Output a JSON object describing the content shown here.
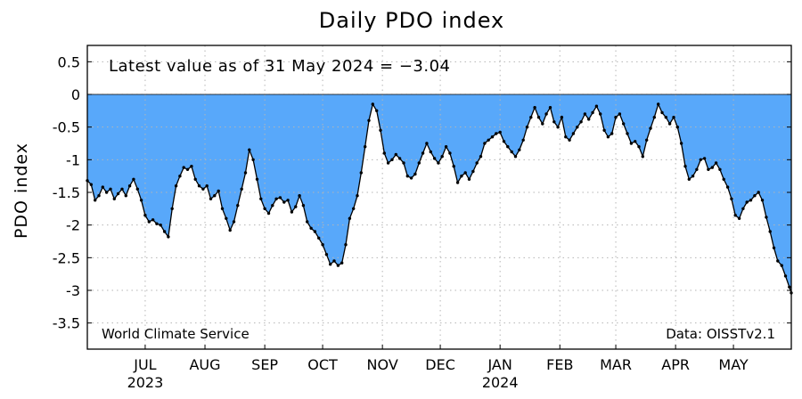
{
  "chart_data": {
    "type": "area",
    "title": "Daily PDO index",
    "ylabel": "PDO index",
    "xlabel": "",
    "annotation": "Latest value as of 31 May 2024 = −3.04",
    "credit_left": "World Climate Service",
    "credit_right": "Data: OISSTv2.1",
    "x_start": "2023-06-01",
    "x_end": "2024-05-31",
    "ylim": [
      -3.9,
      0.75
    ],
    "grid": true,
    "fill_color": "#58a8fa",
    "y_ticks": [
      "0.5",
      "0",
      "-0.5",
      "-1",
      "-1.5",
      "-2",
      "-2.5",
      "-3",
      "-3.5"
    ],
    "x_ticks": [
      {
        "label": "JUL",
        "date": "2023-07-01",
        "year": "2023"
      },
      {
        "label": "AUG",
        "date": "2023-08-01",
        "year": ""
      },
      {
        "label": "SEP",
        "date": "2023-09-01",
        "year": ""
      },
      {
        "label": "OCT",
        "date": "2023-10-01",
        "year": ""
      },
      {
        "label": "NOV",
        "date": "2023-11-01",
        "year": ""
      },
      {
        "label": "DEC",
        "date": "2023-12-01",
        "year": ""
      },
      {
        "label": "JAN",
        "date": "2024-01-01",
        "year": "2024"
      },
      {
        "label": "FEB",
        "date": "2024-02-01",
        "year": ""
      },
      {
        "label": "MAR",
        "date": "2024-03-01",
        "year": ""
      },
      {
        "label": "APR",
        "date": "2024-04-01",
        "year": ""
      },
      {
        "label": "MAY",
        "date": "2024-05-01",
        "year": ""
      }
    ],
    "series": [
      {
        "points": [
          [
            "2023-06-01",
            -1.32
          ],
          [
            "2023-06-03",
            -1.38
          ],
          [
            "2023-06-05",
            -1.62
          ],
          [
            "2023-06-07",
            -1.55
          ],
          [
            "2023-06-09",
            -1.42
          ],
          [
            "2023-06-11",
            -1.5
          ],
          [
            "2023-06-13",
            -1.45
          ],
          [
            "2023-06-15",
            -1.6
          ],
          [
            "2023-06-17",
            -1.52
          ],
          [
            "2023-06-19",
            -1.45
          ],
          [
            "2023-06-21",
            -1.55
          ],
          [
            "2023-06-23",
            -1.4
          ],
          [
            "2023-06-25",
            -1.3
          ],
          [
            "2023-06-27",
            -1.45
          ],
          [
            "2023-06-29",
            -1.62
          ],
          [
            "2023-07-01",
            -1.85
          ],
          [
            "2023-07-03",
            -1.95
          ],
          [
            "2023-07-05",
            -1.92
          ],
          [
            "2023-07-07",
            -1.98
          ],
          [
            "2023-07-09",
            -2.0
          ],
          [
            "2023-07-11",
            -2.1
          ],
          [
            "2023-07-13",
            -2.18
          ],
          [
            "2023-07-15",
            -1.75
          ],
          [
            "2023-07-17",
            -1.4
          ],
          [
            "2023-07-19",
            -1.25
          ],
          [
            "2023-07-21",
            -1.12
          ],
          [
            "2023-07-23",
            -1.15
          ],
          [
            "2023-07-25",
            -1.1
          ],
          [
            "2023-07-27",
            -1.3
          ],
          [
            "2023-07-29",
            -1.4
          ],
          [
            "2023-07-31",
            -1.45
          ],
          [
            "2023-08-02",
            -1.4
          ],
          [
            "2023-08-04",
            -1.6
          ],
          [
            "2023-08-06",
            -1.55
          ],
          [
            "2023-08-08",
            -1.48
          ],
          [
            "2023-08-10",
            -1.75
          ],
          [
            "2023-08-12",
            -1.9
          ],
          [
            "2023-08-14",
            -2.08
          ],
          [
            "2023-08-16",
            -1.95
          ],
          [
            "2023-08-18",
            -1.7
          ],
          [
            "2023-08-20",
            -1.45
          ],
          [
            "2023-08-22",
            -1.2
          ],
          [
            "2023-08-24",
            -0.85
          ],
          [
            "2023-08-26",
            -1.0
          ],
          [
            "2023-08-28",
            -1.3
          ],
          [
            "2023-08-30",
            -1.6
          ],
          [
            "2023-09-01",
            -1.75
          ],
          [
            "2023-09-03",
            -1.82
          ],
          [
            "2023-09-05",
            -1.7
          ],
          [
            "2023-09-07",
            -1.6
          ],
          [
            "2023-09-09",
            -1.58
          ],
          [
            "2023-09-11",
            -1.65
          ],
          [
            "2023-09-13",
            -1.62
          ],
          [
            "2023-09-15",
            -1.8
          ],
          [
            "2023-09-17",
            -1.72
          ],
          [
            "2023-09-19",
            -1.55
          ],
          [
            "2023-09-21",
            -1.7
          ],
          [
            "2023-09-23",
            -1.95
          ],
          [
            "2023-09-25",
            -2.05
          ],
          [
            "2023-09-27",
            -2.1
          ],
          [
            "2023-09-29",
            -2.2
          ],
          [
            "2023-10-01",
            -2.3
          ],
          [
            "2023-10-03",
            -2.45
          ],
          [
            "2023-10-05",
            -2.6
          ],
          [
            "2023-10-07",
            -2.55
          ],
          [
            "2023-10-09",
            -2.62
          ],
          [
            "2023-10-11",
            -2.58
          ],
          [
            "2023-10-13",
            -2.3
          ],
          [
            "2023-10-15",
            -1.9
          ],
          [
            "2023-10-17",
            -1.75
          ],
          [
            "2023-10-19",
            -1.55
          ],
          [
            "2023-10-21",
            -1.2
          ],
          [
            "2023-10-23",
            -0.8
          ],
          [
            "2023-10-25",
            -0.4
          ],
          [
            "2023-10-27",
            -0.15
          ],
          [
            "2023-10-29",
            -0.25
          ],
          [
            "2023-10-31",
            -0.55
          ],
          [
            "2023-11-02",
            -0.9
          ],
          [
            "2023-11-04",
            -1.05
          ],
          [
            "2023-11-06",
            -1.0
          ],
          [
            "2023-11-08",
            -0.92
          ],
          [
            "2023-11-10",
            -0.98
          ],
          [
            "2023-11-12",
            -1.05
          ],
          [
            "2023-11-14",
            -1.25
          ],
          [
            "2023-11-16",
            -1.28
          ],
          [
            "2023-11-18",
            -1.22
          ],
          [
            "2023-11-20",
            -1.05
          ],
          [
            "2023-11-22",
            -0.9
          ],
          [
            "2023-11-24",
            -0.75
          ],
          [
            "2023-11-26",
            -0.88
          ],
          [
            "2023-11-28",
            -0.98
          ],
          [
            "2023-11-30",
            -1.05
          ],
          [
            "2023-12-02",
            -0.95
          ],
          [
            "2023-12-04",
            -0.8
          ],
          [
            "2023-12-06",
            -0.9
          ],
          [
            "2023-12-08",
            -1.1
          ],
          [
            "2023-12-10",
            -1.35
          ],
          [
            "2023-12-12",
            -1.25
          ],
          [
            "2023-12-14",
            -1.2
          ],
          [
            "2023-12-16",
            -1.3
          ],
          [
            "2023-12-18",
            -1.18
          ],
          [
            "2023-12-20",
            -1.05
          ],
          [
            "2023-12-22",
            -0.95
          ],
          [
            "2023-12-24",
            -0.75
          ],
          [
            "2023-12-26",
            -0.7
          ],
          [
            "2023-12-28",
            -0.65
          ],
          [
            "2023-12-30",
            -0.6
          ],
          [
            "2024-01-01",
            -0.58
          ],
          [
            "2024-01-03",
            -0.72
          ],
          [
            "2024-01-05",
            -0.8
          ],
          [
            "2024-01-07",
            -0.88
          ],
          [
            "2024-01-09",
            -0.95
          ],
          [
            "2024-01-11",
            -0.85
          ],
          [
            "2024-01-13",
            -0.7
          ],
          [
            "2024-01-15",
            -0.5
          ],
          [
            "2024-01-17",
            -0.35
          ],
          [
            "2024-01-19",
            -0.2
          ],
          [
            "2024-01-21",
            -0.35
          ],
          [
            "2024-01-23",
            -0.45
          ],
          [
            "2024-01-25",
            -0.3
          ],
          [
            "2024-01-27",
            -0.2
          ],
          [
            "2024-01-29",
            -0.42
          ],
          [
            "2024-01-31",
            -0.5
          ],
          [
            "2024-02-02",
            -0.35
          ],
          [
            "2024-02-04",
            -0.65
          ],
          [
            "2024-02-06",
            -0.7
          ],
          [
            "2024-02-08",
            -0.6
          ],
          [
            "2024-02-10",
            -0.5
          ],
          [
            "2024-02-12",
            -0.42
          ],
          [
            "2024-02-14",
            -0.3
          ],
          [
            "2024-02-16",
            -0.38
          ],
          [
            "2024-02-18",
            -0.28
          ],
          [
            "2024-02-20",
            -0.18
          ],
          [
            "2024-02-22",
            -0.3
          ],
          [
            "2024-02-24",
            -0.55
          ],
          [
            "2024-02-26",
            -0.65
          ],
          [
            "2024-02-28",
            -0.6
          ],
          [
            "2024-03-01",
            -0.35
          ],
          [
            "2024-03-03",
            -0.3
          ],
          [
            "2024-03-05",
            -0.45
          ],
          [
            "2024-03-07",
            -0.6
          ],
          [
            "2024-03-09",
            -0.75
          ],
          [
            "2024-03-11",
            -0.72
          ],
          [
            "2024-03-13",
            -0.8
          ],
          [
            "2024-03-15",
            -0.95
          ],
          [
            "2024-03-17",
            -0.7
          ],
          [
            "2024-03-19",
            -0.52
          ],
          [
            "2024-03-21",
            -0.35
          ],
          [
            "2024-03-23",
            -0.15
          ],
          [
            "2024-03-25",
            -0.28
          ],
          [
            "2024-03-27",
            -0.35
          ],
          [
            "2024-03-29",
            -0.45
          ],
          [
            "2024-03-31",
            -0.35
          ],
          [
            "2024-04-02",
            -0.5
          ],
          [
            "2024-04-04",
            -0.75
          ],
          [
            "2024-04-06",
            -1.1
          ],
          [
            "2024-04-08",
            -1.3
          ],
          [
            "2024-04-10",
            -1.25
          ],
          [
            "2024-04-12",
            -1.15
          ],
          [
            "2024-04-14",
            -1.0
          ],
          [
            "2024-04-16",
            -0.98
          ],
          [
            "2024-04-18",
            -1.15
          ],
          [
            "2024-04-20",
            -1.12
          ],
          [
            "2024-04-22",
            -1.05
          ],
          [
            "2024-04-24",
            -1.15
          ],
          [
            "2024-04-26",
            -1.3
          ],
          [
            "2024-04-28",
            -1.42
          ],
          [
            "2024-04-30",
            -1.6
          ],
          [
            "2024-05-02",
            -1.85
          ],
          [
            "2024-05-04",
            -1.9
          ],
          [
            "2024-05-06",
            -1.75
          ],
          [
            "2024-05-08",
            -1.65
          ],
          [
            "2024-05-10",
            -1.62
          ],
          [
            "2024-05-12",
            -1.55
          ],
          [
            "2024-05-14",
            -1.5
          ],
          [
            "2024-05-16",
            -1.62
          ],
          [
            "2024-05-18",
            -1.88
          ],
          [
            "2024-05-20",
            -2.1
          ],
          [
            "2024-05-22",
            -2.35
          ],
          [
            "2024-05-24",
            -2.55
          ],
          [
            "2024-05-26",
            -2.62
          ],
          [
            "2024-05-28",
            -2.78
          ],
          [
            "2024-05-30",
            -2.95
          ],
          [
            "2024-05-31",
            -3.04
          ]
        ]
      }
    ]
  }
}
